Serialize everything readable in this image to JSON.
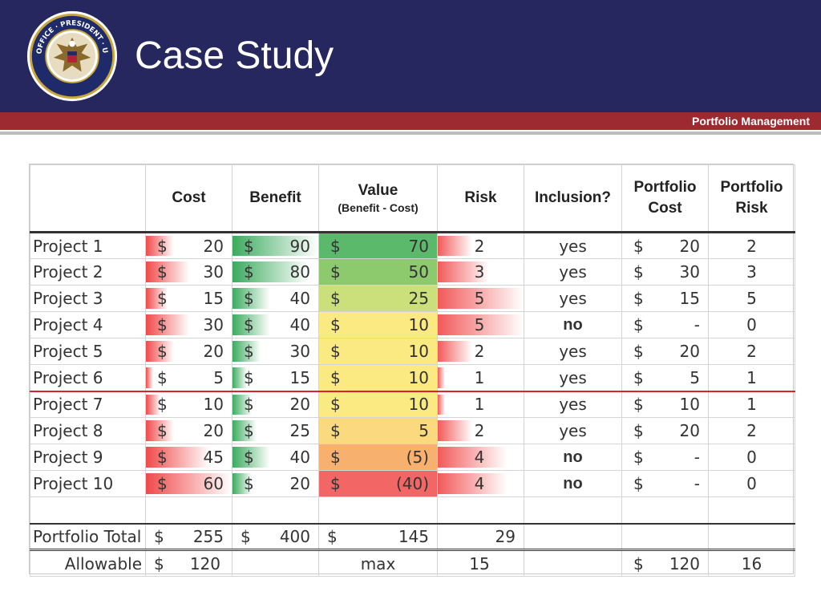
{
  "slide": {
    "title": "Case Study",
    "section_label": "Portfolio Management",
    "seal_text": "EXECUTIVE OFFICE OF THE PRESIDENT OF THE UNITED STATES · OFFICE OF MANAGEMENT AND BUDGET"
  },
  "colors": {
    "header_bg": "#26275e",
    "band_red": "#9d2a31",
    "cost_bar": "#f04a4a",
    "benefit_bar": "#3cab5e",
    "risk_bar": "#f25a5a",
    "separator_line": "#d8232a"
  },
  "table": {
    "headers": {
      "cost": "Cost",
      "benefit": "Benefit",
      "value": "Value",
      "value_sub": "(Benefit - Cost)",
      "risk": "Risk",
      "inclusion": "Inclusion?",
      "portfolio_cost_1": "Portfolio",
      "portfolio_cost_2": "Cost",
      "portfolio_risk_1": "Portfolio",
      "portfolio_risk_2": "Risk"
    },
    "currency": "$",
    "rows": [
      {
        "name": "Project 1",
        "cost": "20",
        "benefit": "90",
        "value": "70",
        "risk": "2",
        "inclusion": "yes",
        "pcost": "20",
        "prisk": "2",
        "value_color": "#5ab96a",
        "cost_fill": 0.33,
        "benefit_fill": 1.0,
        "risk_fill": 0.4
      },
      {
        "name": "Project 2",
        "cost": "30",
        "benefit": "80",
        "value": "50",
        "risk": "3",
        "inclusion": "yes",
        "pcost": "30",
        "prisk": "3",
        "value_color": "#8dca6e",
        "cost_fill": 0.5,
        "benefit_fill": 0.89,
        "risk_fill": 0.6
      },
      {
        "name": "Project 3",
        "cost": "15",
        "benefit": "40",
        "value": "25",
        "risk": "5",
        "inclusion": "yes",
        "pcost": "15",
        "prisk": "5",
        "value_color": "#cbe07a",
        "cost_fill": 0.25,
        "benefit_fill": 0.44,
        "risk_fill": 1.0
      },
      {
        "name": "Project 4",
        "cost": "30",
        "benefit": "40",
        "value": "10",
        "risk": "5",
        "inclusion": "no",
        "pcost": "-",
        "prisk": "0",
        "value_color": "#fbe982",
        "cost_fill": 0.5,
        "benefit_fill": 0.44,
        "risk_fill": 1.0
      },
      {
        "name": "Project 5",
        "cost": "20",
        "benefit": "30",
        "value": "10",
        "risk": "2",
        "inclusion": "yes",
        "pcost": "20",
        "prisk": "2",
        "value_color": "#fbe982",
        "cost_fill": 0.33,
        "benefit_fill": 0.33,
        "risk_fill": 0.4
      },
      {
        "name": "Project 6",
        "cost": "5",
        "benefit": "15",
        "value": "10",
        "risk": "1",
        "inclusion": "yes",
        "pcost": "5",
        "prisk": "1",
        "value_color": "#fbe982",
        "cost_fill": 0.08,
        "benefit_fill": 0.17,
        "risk_fill": 0.08
      },
      {
        "name": "Project 7",
        "cost": "10",
        "benefit": "20",
        "value": "10",
        "risk": "1",
        "inclusion": "yes",
        "pcost": "10",
        "prisk": "1",
        "value_color": "#fbe982",
        "cost_fill": 0.17,
        "benefit_fill": 0.22,
        "risk_fill": 0.08
      },
      {
        "name": "Project 8",
        "cost": "20",
        "benefit": "25",
        "value": "5",
        "risk": "2",
        "inclusion": "yes",
        "pcost": "20",
        "prisk": "2",
        "value_color": "#fbd97e",
        "cost_fill": 0.33,
        "benefit_fill": 0.28,
        "risk_fill": 0.4
      },
      {
        "name": "Project 9",
        "cost": "45",
        "benefit": "40",
        "value": "(5)",
        "risk": "4",
        "inclusion": "no",
        "pcost": "-",
        "prisk": "0",
        "value_color": "#f8b06f",
        "cost_fill": 0.75,
        "benefit_fill": 0.44,
        "risk_fill": 0.8
      },
      {
        "name": "Project 10",
        "cost": "60",
        "benefit": "20",
        "value": "(40)",
        "risk": "4",
        "inclusion": "no",
        "pcost": "-",
        "prisk": "0",
        "value_color": "#f36666",
        "cost_fill": 1.0,
        "benefit_fill": 0.22,
        "risk_fill": 0.8
      }
    ],
    "totals": {
      "label": "Portfolio Total",
      "cost": "255",
      "benefit": "400",
      "value": "145",
      "risk": "29"
    },
    "allowable": {
      "label": "Allowable",
      "cost": "120",
      "value": "max",
      "risk": "15",
      "pcost": "120",
      "prisk": "16"
    }
  }
}
